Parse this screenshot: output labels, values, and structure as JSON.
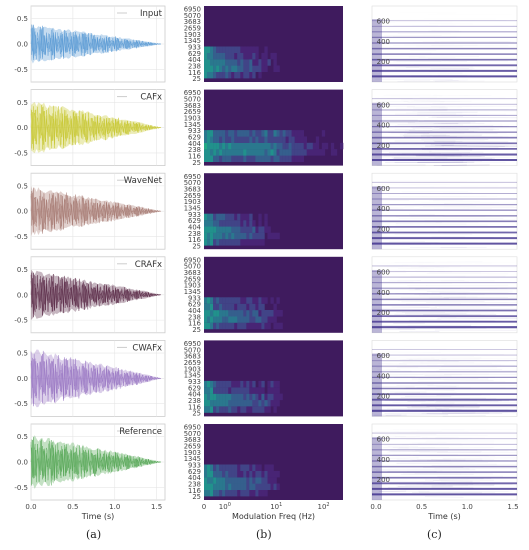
{
  "figure": {
    "panel_labels": [
      "(a)",
      "(b)",
      "(c)"
    ],
    "colors": {
      "waveform_lines": [
        "#5b9bd5",
        "#c8c834",
        "#a87c74",
        "#5c2d4a",
        "#9b79c4",
        "#57a857"
      ],
      "heatmap_background": "#3f1b5e",
      "spectrogram_line": "#3a2a8a"
    }
  },
  "chart_data": [
    {
      "type": "line",
      "column": "(a)",
      "xlabel": "Time (s)",
      "x_ticks": [
        "0.0",
        "0.5",
        "1.0",
        "1.5"
      ],
      "xlim": [
        0.0,
        1.6
      ],
      "y_ticks": [
        "0.5",
        "0.0",
        "-0.5"
      ],
      "ylim": [
        -0.75,
        0.75
      ],
      "grid": true,
      "legend_position": "top-right",
      "panels": [
        {
          "legend": "Input",
          "color": "#5b9bd5",
          "peak_amplitude": 0.4,
          "decay_end": 1.55
        },
        {
          "legend": "CAFx",
          "color": "#c8c834",
          "peak_amplitude": 0.55,
          "decay_end": 1.55
        },
        {
          "legend": "WaveNet",
          "color": "#a87c74",
          "peak_amplitude": 0.5,
          "decay_end": 1.55
        },
        {
          "legend": "CRAFx",
          "color": "#5c2d4a",
          "peak_amplitude": 0.5,
          "decay_end": 1.55
        },
        {
          "legend": "CWAFx",
          "color": "#9b79c4",
          "peak_amplitude": 0.6,
          "decay_end": 1.55
        },
        {
          "legend": "Reference",
          "color": "#57a857",
          "peak_amplitude": 0.55,
          "decay_end": 1.55
        }
      ]
    },
    {
      "type": "heatmap",
      "column": "(b)",
      "xlabel": "Modulation Freq (Hz)",
      "x_ticks": [
        "0",
        "10^0",
        "10^1",
        "10^2"
      ],
      "y_ticks": [
        "6950",
        "5070",
        "3683",
        "2659",
        "1903",
        "1345",
        "933",
        "629",
        "404",
        "238",
        "116",
        "25"
      ],
      "colormap": "viridis",
      "panels": [
        {
          "name": "Input",
          "activity": "low"
        },
        {
          "name": "CAFx",
          "activity": "high"
        },
        {
          "name": "WaveNet",
          "activity": "low"
        },
        {
          "name": "CRAFx",
          "activity": "medium"
        },
        {
          "name": "CWAFx",
          "activity": "medium"
        },
        {
          "name": "Reference",
          "activity": "medium"
        }
      ]
    },
    {
      "type": "heatmap",
      "column": "(c)",
      "xlabel": "Time (s)",
      "x_ticks": [
        "0.0",
        "0.5",
        "1.0",
        "1.5"
      ],
      "y_ticks": [
        "600",
        "400",
        "200"
      ],
      "ylim": [
        0,
        750
      ],
      "panels": [
        {
          "name": "Input",
          "harmonics": [
            55,
            110,
            165,
            220,
            275,
            330,
            385,
            440,
            495,
            550,
            605
          ],
          "noise": "low"
        },
        {
          "name": "CAFx",
          "harmonics": [
            55,
            110,
            165,
            220,
            275,
            330,
            385,
            440,
            495,
            550,
            605,
            660
          ],
          "noise": "high"
        },
        {
          "name": "WaveNet",
          "harmonics": [
            55,
            110,
            165,
            220,
            275,
            330,
            385,
            440,
            495,
            550,
            605,
            660
          ],
          "noise": "low"
        },
        {
          "name": "CRAFx",
          "harmonics": [
            55,
            110,
            165,
            220,
            275,
            330,
            385,
            440,
            495,
            550,
            605,
            660
          ],
          "noise": "medium"
        },
        {
          "name": "CWAFx",
          "harmonics": [
            55,
            110,
            165,
            220,
            275,
            330,
            385,
            440,
            495,
            550,
            605,
            660
          ],
          "noise": "medium"
        },
        {
          "name": "Reference",
          "harmonics": [
            55,
            110,
            165,
            220,
            275,
            330,
            385,
            440,
            495,
            550,
            605,
            660
          ],
          "noise": "medium"
        }
      ]
    }
  ]
}
